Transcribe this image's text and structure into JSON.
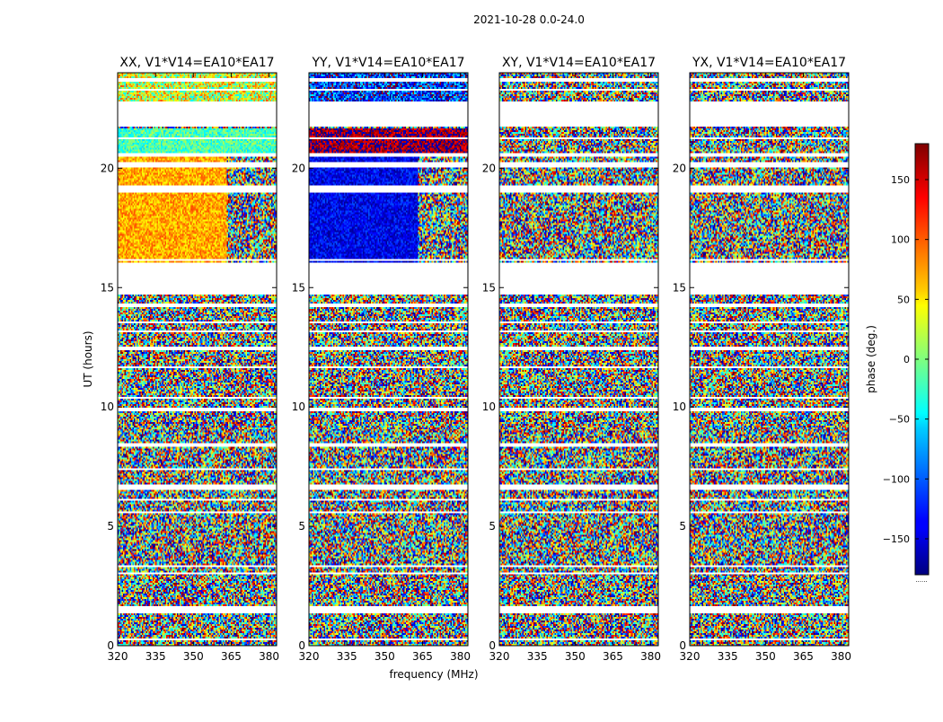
{
  "chart_data": {
    "type": "heatmap",
    "suptitle": "2021-10-28 0.0-24.0",
    "xlabel": "frequency (MHz)",
    "ylabel": "UT (hours)",
    "xlim": [
      320,
      383
    ],
    "ylim": [
      0,
      24
    ],
    "xticks": [
      320,
      335,
      350,
      365,
      380
    ],
    "yticks": [
      0,
      5,
      10,
      15,
      20
    ],
    "colorbar": {
      "label": "phase (deg.)",
      "range": [
        -180,
        180
      ],
      "ticks": [
        150,
        100,
        50,
        0,
        -50,
        -100,
        -150
      ],
      "tick_labels": [
        "150",
        "100",
        "50",
        "0",
        "−50",
        "−100",
        "−150"
      ],
      "colormap": "jet",
      "footer": "......"
    },
    "flagged_bands_hours": [
      [
        0.25,
        0.32
      ],
      [
        1.32,
        1.62
      ],
      [
        3.0,
        3.1
      ],
      [
        3.3,
        3.4
      ],
      [
        5.55,
        5.62
      ],
      [
        6.05,
        6.15
      ],
      [
        6.55,
        6.75
      ],
      [
        7.35,
        7.45
      ],
      [
        8.35,
        8.45
      ],
      [
        9.85,
        9.95
      ],
      [
        10.35,
        10.45
      ],
      [
        11.6,
        11.7
      ],
      [
        12.4,
        12.5
      ],
      [
        13.1,
        13.2
      ],
      [
        13.5,
        13.6
      ],
      [
        14.2,
        14.35
      ],
      [
        14.7,
        16.05
      ],
      [
        16.15,
        16.2
      ],
      [
        18.95,
        19.25
      ],
      [
        20.05,
        20.25
      ],
      [
        20.45,
        20.65
      ],
      [
        21.2,
        21.3
      ],
      [
        21.75,
        22.8
      ],
      [
        23.25,
        23.35
      ],
      [
        23.65,
        23.75
      ]
    ],
    "panels": [
      {
        "title": "XX, V1*V14=EA10*EA17",
        "segments": [
          {
            "t": [
              16.05,
              20.5
            ],
            "f": [
              320,
              363
            ],
            "phase_mean": 75,
            "spread": 35,
            "note": "coherent orange phase"
          },
          {
            "t": [
              16.05,
              20.5
            ],
            "f": [
              363,
              383
            ],
            "phase_mean": 20,
            "spread": 180,
            "note": "striped / wrapping phase"
          },
          {
            "t": [
              20.65,
              21.7
            ],
            "f": [
              320,
              383
            ],
            "phase_mean": -20,
            "spread": 40,
            "note": "cyan-green"
          },
          {
            "t": [
              22.8,
              24.0
            ],
            "f": [
              320,
              383
            ],
            "phase_mean": 30,
            "spread": 80
          }
        ]
      },
      {
        "title": "YY, V1*V14=EA10*EA17",
        "segments": [
          {
            "t": [
              16.05,
              20.5
            ],
            "f": [
              320,
              363
            ],
            "phase_mean": -140,
            "spread": 35,
            "note": "coherent blue phase"
          },
          {
            "t": [
              16.05,
              20.5
            ],
            "f": [
              363,
              383
            ],
            "phase_mean": -90,
            "spread": 180,
            "note": "striped / wrapping phase"
          },
          {
            "t": [
              20.65,
              21.7
            ],
            "f": [
              320,
              383
            ],
            "phase_mean": 170,
            "spread": 40,
            "note": "dark red"
          },
          {
            "t": [
              22.8,
              24.0
            ],
            "f": [
              320,
              383
            ],
            "phase_mean": -120,
            "spread": 80
          }
        ]
      },
      {
        "title": "XY, V1*V14=EA10*EA17",
        "segments": [
          {
            "t": [
              0.0,
              24.0
            ],
            "f": [
              320,
              383
            ],
            "phase_mean": 0,
            "spread": 180,
            "note": "noise"
          }
        ]
      },
      {
        "title": "YX, V1*V14=EA10*EA17",
        "segments": [
          {
            "t": [
              0.0,
              24.0
            ],
            "f": [
              320,
              383
            ],
            "phase_mean": 0,
            "spread": 180,
            "note": "noise"
          }
        ]
      }
    ]
  }
}
